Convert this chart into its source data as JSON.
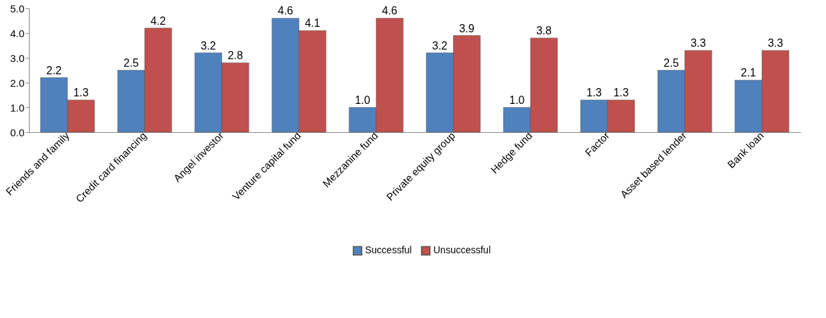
{
  "chart_data": {
    "type": "bar",
    "categories": [
      "Friends and family",
      "Credit card financing",
      "Angel investor",
      "Venture capital fund",
      "Mezzanine fund",
      "Private equity group",
      "Hedge fund",
      "Factor",
      "Asset based lender",
      "Bank loan"
    ],
    "series": [
      {
        "name": "Successful",
        "color": "#4f81bd",
        "values": [
          2.2,
          2.5,
          3.2,
          4.6,
          1.0,
          3.2,
          1.0,
          1.3,
          2.5,
          2.1
        ],
        "value_labels": [
          "2.2",
          "2.5",
          "3.2",
          "4.6",
          "1.0",
          "3.2",
          "1.0",
          "1.3",
          "2.5",
          "2.1"
        ]
      },
      {
        "name": "Unsuccessful",
        "color": "#c0504d",
        "values": [
          1.3,
          4.2,
          2.8,
          4.1,
          4.6,
          3.9,
          3.8,
          1.3,
          3.3,
          3.3
        ],
        "value_labels": [
          "1.3",
          "4.2",
          "2.8",
          "4.1",
          "4.6",
          "3.9",
          "3.8",
          "1.3",
          "3.3",
          "3.3"
        ]
      }
    ],
    "ylim": [
      0,
      5
    ],
    "yticks": [
      {
        "value": 0,
        "label": "0.0"
      },
      {
        "value": 1,
        "label": "1.0"
      },
      {
        "value": 2,
        "label": "2.0"
      },
      {
        "value": 3,
        "label": "3.0"
      },
      {
        "value": 4,
        "label": "4.0"
      },
      {
        "value": 5,
        "label": "5.0"
      }
    ],
    "data_labels": false,
    "grid": false,
    "legend": "bottom"
  }
}
